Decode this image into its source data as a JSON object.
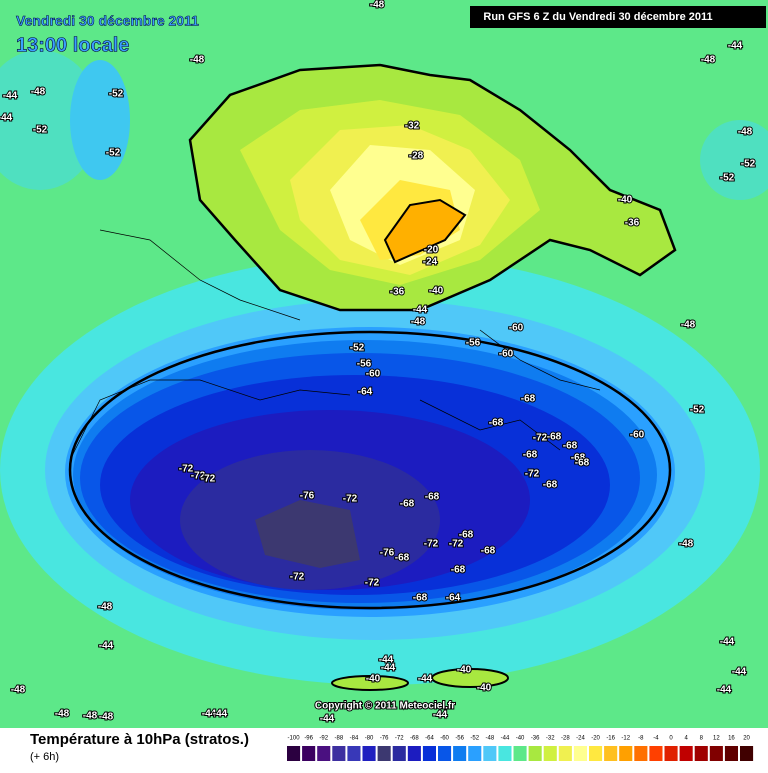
{
  "header": {
    "date": "Vendredi 30 décembre 2011",
    "time": "13:00 locale",
    "run": "Run GFS 6 Z du Vendredi 30 décembre 2011"
  },
  "footer": {
    "title": "Température à 10hPa (stratos.)",
    "lead": "(+ 6h)",
    "copyright": "Copyright © 2011 Meteociel.fr"
  },
  "legend": {
    "labels": [
      "-100",
      "-96",
      "-92",
      "-88",
      "-84",
      "-80",
      "-76",
      "-72",
      "-68",
      "-64",
      "-60",
      "-56",
      "-52",
      "-48",
      "-44",
      "-40",
      "-36",
      "-32",
      "-28",
      "-24",
      "-20",
      "-16",
      "-12",
      "-8",
      "-4",
      "0",
      "4",
      "8",
      "12",
      "16",
      "20"
    ],
    "colors": [
      "#2b0040",
      "#3b0060",
      "#4a1080",
      "#3d2fa0",
      "#3838b8",
      "#2020c0",
      "#3c3870",
      "#2b2ba0",
      "#1c1cc0",
      "#0830d8",
      "#0856e8",
      "#0f7cf0",
      "#2aa0ff",
      "#50c8f8",
      "#49e6e0",
      "#5de889",
      "#a8e840",
      "#d0f040",
      "#f0f050",
      "#ffff90",
      "#ffe840",
      "#ffc020",
      "#ffa000",
      "#ff7000",
      "#ff4000",
      "#e02000",
      "#c00000",
      "#a00000",
      "#800000",
      "#600000",
      "#400000"
    ]
  },
  "contour_labels": [
    "-48",
    "-44",
    "-48",
    "-48",
    "-44",
    "-48",
    "-52",
    "-52",
    "-44",
    "-52",
    "-32",
    "-28",
    "-52",
    "-52",
    "-48",
    "-40",
    "-36",
    "-20",
    "-24",
    "-36",
    "-40",
    "-44",
    "-48",
    "-48",
    "-60",
    "-52",
    "-56",
    "-60",
    "-56",
    "-60",
    "-64",
    "-68",
    "-52",
    "-68",
    "-72",
    "-68",
    "-68",
    "-60",
    "-68",
    "-68",
    "-68",
    "-72",
    "-72",
    "-72",
    "-72",
    "-68",
    "-76",
    "-72",
    "-68",
    "-68",
    "-68",
    "-72",
    "-72",
    "-68",
    "-48",
    "-76",
    "-68",
    "-68",
    "-72",
    "-72",
    "-68",
    "-64",
    "-48",
    "-44",
    "-44",
    "-44",
    "-44",
    "-40",
    "-44",
    "-40",
    "-40",
    "-48",
    "-44",
    "-44",
    "-48",
    "-48",
    "-44",
    "-44",
    "-44",
    "-44",
    "-48"
  ]
}
